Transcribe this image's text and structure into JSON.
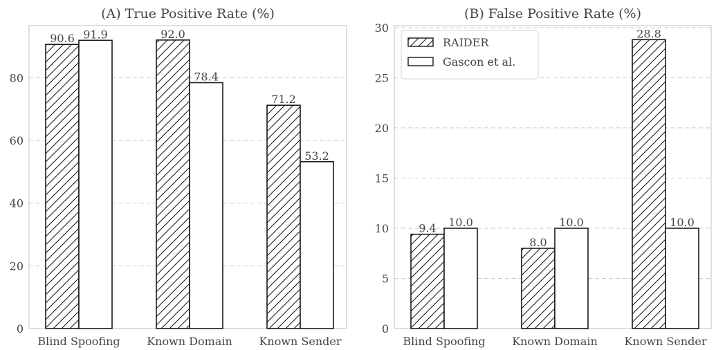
{
  "chart_data": [
    {
      "type": "bar",
      "title": "(A) True Positive Rate (%)",
      "xlabel": "",
      "ylabel": "",
      "categories": [
        "Blind Spoofing",
        "Known Domain",
        "Known Sender"
      ],
      "series": [
        {
          "name": "RAIDER",
          "values": [
            90.6,
            92.0,
            71.2
          ],
          "labels": [
            "90.6",
            "92.0",
            "71.2"
          ],
          "style": "hatched"
        },
        {
          "name": "Gascon et al.",
          "values": [
            91.9,
            78.4,
            53.2
          ],
          "labels": [
            "91.9",
            "78.4",
            "53.2"
          ],
          "style": "plain"
        }
      ],
      "ylim": [
        0,
        96.6
      ],
      "yticks": [
        0,
        20,
        40,
        60,
        80
      ],
      "grid": true,
      "legend": null
    },
    {
      "type": "bar",
      "title": "(B) False Positive Rate (%)",
      "xlabel": "",
      "ylabel": "",
      "categories": [
        "Blind Spoofing",
        "Known Domain",
        "Known Sender"
      ],
      "series": [
        {
          "name": "RAIDER",
          "values": [
            9.4,
            8.0,
            28.8
          ],
          "labels": [
            "9.4",
            "8.0",
            "28.8"
          ],
          "style": "hatched"
        },
        {
          "name": "Gascon et al.",
          "values": [
            10.0,
            10.0,
            10.0
          ],
          "labels": [
            "10.0",
            "10.0",
            "10.0"
          ],
          "style": "plain"
        }
      ],
      "ylim": [
        0,
        30.2
      ],
      "yticks": [
        0,
        5,
        10,
        15,
        20,
        25,
        30
      ],
      "grid": true,
      "legend": "upper-left"
    }
  ],
  "colors": {
    "bar_edge": "#1a1a1a",
    "bar_fill": "#ffffff",
    "grid": "#cccccc",
    "frame": "#cccccc",
    "text": "#444444"
  }
}
